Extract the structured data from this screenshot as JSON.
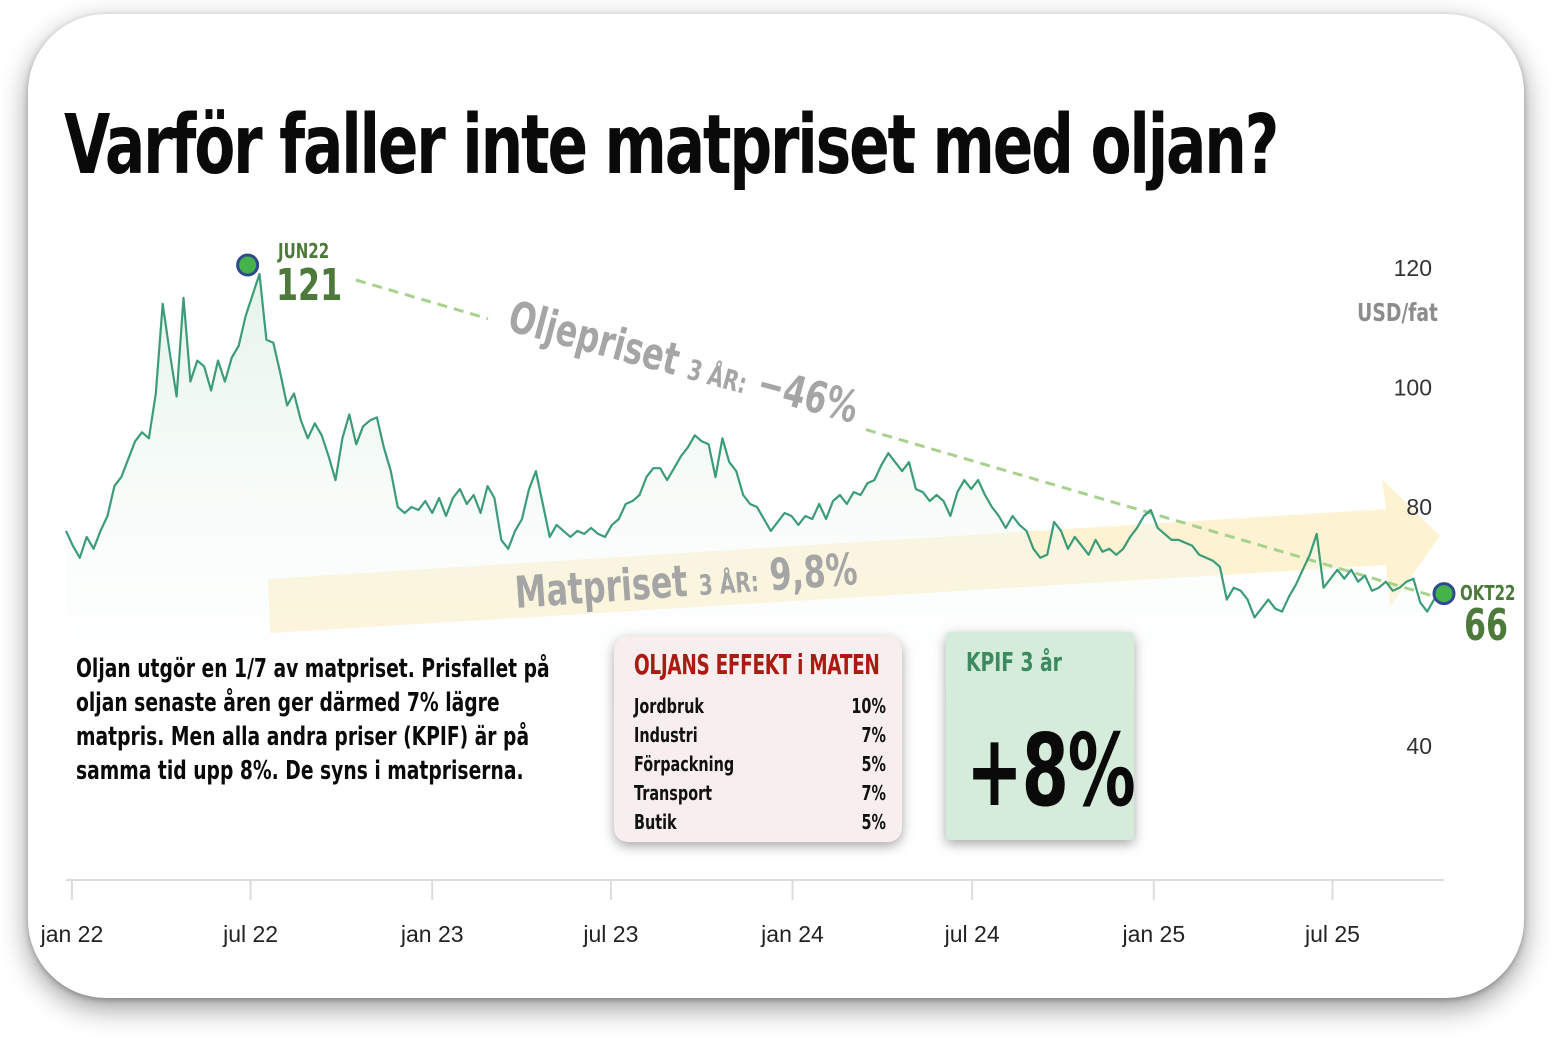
{
  "headline": "Varför faller inte matpriset med oljan?",
  "chart_data": {
    "type": "area",
    "ylabel": "USD/fat",
    "y_ticks": [
      120,
      100,
      80,
      40
    ],
    "ylim": [
      27,
      126
    ],
    "x_ticks": [
      "jan 22",
      "jul 22",
      "jan 23",
      "jul 23",
      "jan 24",
      "jul 24",
      "jan 25",
      "jul 25"
    ],
    "xlim": [
      "2021-12-26",
      "2025-10-22"
    ],
    "grid": false,
    "series": [
      {
        "color": "#3d9c78",
        "points": [
          [
            "2021-12-26",
            76.0
          ],
          [
            "2022-01-02",
            73.5
          ],
          [
            "2022-01-09",
            71.5
          ],
          [
            "2022-01-16",
            75.0
          ],
          [
            "2022-01-23",
            73.0
          ],
          [
            "2022-01-30",
            76.0
          ],
          [
            "2022-02-06",
            78.5
          ],
          [
            "2022-02-13",
            83.5
          ],
          [
            "2022-02-20",
            85.0
          ],
          [
            "2022-02-27",
            88.0
          ],
          [
            "2022-03-06",
            91.0
          ],
          [
            "2022-03-13",
            92.5
          ],
          [
            "2022-03-20",
            91.5
          ],
          [
            "2022-03-27",
            99.0
          ],
          [
            "2022-04-03",
            114.0
          ],
          [
            "2022-04-10",
            106.0
          ],
          [
            "2022-04-17",
            98.5
          ],
          [
            "2022-04-24",
            115.0
          ],
          [
            "2022-05-01",
            101.0
          ],
          [
            "2022-05-08",
            104.5
          ],
          [
            "2022-05-15",
            103.5
          ],
          [
            "2022-05-22",
            99.5
          ],
          [
            "2022-05-29",
            104.5
          ],
          [
            "2022-06-05",
            101.0
          ],
          [
            "2022-06-12",
            105.0
          ],
          [
            "2022-06-19",
            107.0
          ],
          [
            "2022-06-26",
            112.0
          ],
          [
            "2022-07-03",
            115.5
          ],
          [
            "2022-07-10",
            119.0
          ],
          [
            "2022-07-17",
            108.0
          ],
          [
            "2022-07-24",
            107.5
          ],
          [
            "2022-07-31",
            102.5
          ],
          [
            "2022-08-07",
            97.0
          ],
          [
            "2022-08-14",
            99.0
          ],
          [
            "2022-08-21",
            94.5
          ],
          [
            "2022-08-28",
            91.5
          ],
          [
            "2022-09-04",
            94.0
          ],
          [
            "2022-09-11",
            92.0
          ],
          [
            "2022-09-18",
            88.5
          ],
          [
            "2022-09-25",
            84.5
          ],
          [
            "2022-10-02",
            91.5
          ],
          [
            "2022-10-09",
            95.5
          ],
          [
            "2022-10-16",
            90.5
          ],
          [
            "2022-10-23",
            93.5
          ],
          [
            "2022-10-30",
            94.5
          ],
          [
            "2022-11-06",
            95.0
          ],
          [
            "2022-11-13",
            90.0
          ],
          [
            "2022-11-20",
            86.0
          ],
          [
            "2022-11-27",
            80.0
          ],
          [
            "2022-12-04",
            79.0
          ],
          [
            "2022-12-11",
            80.0
          ],
          [
            "2022-12-18",
            79.5
          ],
          [
            "2022-12-25",
            81.0
          ],
          [
            "2023-01-01",
            79.0
          ],
          [
            "2023-01-08",
            81.5
          ],
          [
            "2023-01-15",
            78.5
          ],
          [
            "2023-01-22",
            81.5
          ],
          [
            "2023-01-29",
            83.0
          ],
          [
            "2023-02-05",
            80.5
          ],
          [
            "2023-02-12",
            82.0
          ],
          [
            "2023-02-19",
            79.0
          ],
          [
            "2023-02-26",
            83.5
          ],
          [
            "2023-03-05",
            81.5
          ],
          [
            "2023-03-12",
            74.5
          ],
          [
            "2023-03-19",
            73.0
          ],
          [
            "2023-03-26",
            76.0
          ],
          [
            "2023-04-02",
            78.0
          ],
          [
            "2023-04-09",
            83.0
          ],
          [
            "2023-04-16",
            86.0
          ],
          [
            "2023-04-23",
            80.5
          ],
          [
            "2023-04-30",
            75.0
          ],
          [
            "2023-05-07",
            77.0
          ],
          [
            "2023-05-14",
            76.0
          ],
          [
            "2023-05-21",
            75.0
          ],
          [
            "2023-05-28",
            76.0
          ],
          [
            "2023-06-04",
            75.5
          ],
          [
            "2023-06-11",
            76.5
          ],
          [
            "2023-06-18",
            75.5
          ],
          [
            "2023-06-25",
            75.0
          ],
          [
            "2023-07-02",
            77.0
          ],
          [
            "2023-07-09",
            78.0
          ],
          [
            "2023-07-16",
            80.5
          ],
          [
            "2023-07-23",
            81.0
          ],
          [
            "2023-07-30",
            82.0
          ],
          [
            "2023-08-06",
            85.0
          ],
          [
            "2023-08-13",
            86.5
          ],
          [
            "2023-08-20",
            86.5
          ],
          [
            "2023-08-27",
            84.5
          ],
          [
            "2023-09-03",
            86.5
          ],
          [
            "2023-09-10",
            88.5
          ],
          [
            "2023-09-17",
            90.0
          ],
          [
            "2023-09-24",
            92.0
          ],
          [
            "2023-10-01",
            91.0
          ],
          [
            "2023-10-08",
            90.5
          ],
          [
            "2023-10-15",
            85.0
          ],
          [
            "2023-10-22",
            91.5
          ],
          [
            "2023-10-29",
            87.5
          ],
          [
            "2023-11-05",
            86.0
          ],
          [
            "2023-11-12",
            82.0
          ],
          [
            "2023-11-19",
            80.5
          ],
          [
            "2023-11-26",
            80.0
          ],
          [
            "2023-12-03",
            78.0
          ],
          [
            "2023-12-10",
            76.0
          ],
          [
            "2023-12-17",
            77.5
          ],
          [
            "2023-12-24",
            79.0
          ],
          [
            "2023-12-31",
            78.5
          ],
          [
            "2024-01-07",
            77.0
          ],
          [
            "2024-01-14",
            78.5
          ],
          [
            "2024-01-21",
            78.0
          ],
          [
            "2024-01-28",
            80.5
          ],
          [
            "2024-02-04",
            78.0
          ],
          [
            "2024-02-11",
            81.0
          ],
          [
            "2024-02-18",
            82.0
          ],
          [
            "2024-02-25",
            80.5
          ],
          [
            "2024-03-03",
            82.5
          ],
          [
            "2024-03-10",
            82.0
          ],
          [
            "2024-03-17",
            84.0
          ],
          [
            "2024-03-24",
            84.5
          ],
          [
            "2024-03-31",
            87.0
          ],
          [
            "2024-04-07",
            89.0
          ],
          [
            "2024-04-14",
            87.5
          ],
          [
            "2024-04-21",
            86.0
          ],
          [
            "2024-04-28",
            87.5
          ],
          [
            "2024-05-05",
            83.0
          ],
          [
            "2024-05-12",
            82.5
          ],
          [
            "2024-05-19",
            81.0
          ],
          [
            "2024-05-26",
            82.0
          ],
          [
            "2024-06-02",
            81.0
          ],
          [
            "2024-06-09",
            78.5
          ],
          [
            "2024-06-16",
            82.5
          ],
          [
            "2024-06-23",
            84.5
          ],
          [
            "2024-06-30",
            83.0
          ],
          [
            "2024-07-07",
            84.5
          ],
          [
            "2024-07-14",
            82.0
          ],
          [
            "2024-07-21",
            80.0
          ],
          [
            "2024-07-28",
            78.5
          ],
          [
            "2024-08-04",
            76.5
          ],
          [
            "2024-08-11",
            78.5
          ],
          [
            "2024-08-18",
            77.0
          ],
          [
            "2024-08-25",
            76.0
          ],
          [
            "2024-09-01",
            73.0
          ],
          [
            "2024-09-08",
            71.5
          ],
          [
            "2024-09-15",
            72.0
          ],
          [
            "2024-09-22",
            77.5
          ],
          [
            "2024-09-29",
            76.0
          ],
          [
            "2024-10-06",
            73.0
          ],
          [
            "2024-10-13",
            75.0
          ],
          [
            "2024-10-20",
            73.5
          ],
          [
            "2024-10-27",
            72.0
          ],
          [
            "2024-11-03",
            74.5
          ],
          [
            "2024-11-10",
            72.5
          ],
          [
            "2024-11-17",
            73.0
          ],
          [
            "2024-11-24",
            72.0
          ],
          [
            "2024-12-01",
            73.0
          ],
          [
            "2024-12-08",
            75.0
          ],
          [
            "2024-12-15",
            76.5
          ],
          [
            "2024-12-22",
            78.5
          ],
          [
            "2024-12-29",
            79.5
          ],
          [
            "2025-01-05",
            76.5
          ],
          [
            "2025-01-12",
            75.5
          ],
          [
            "2025-01-19",
            74.5
          ],
          [
            "2025-01-26",
            74.5
          ],
          [
            "2025-02-02",
            74.0
          ],
          [
            "2025-02-09",
            73.5
          ],
          [
            "2025-02-16",
            72.0
          ],
          [
            "2025-02-23",
            71.5
          ],
          [
            "2025-03-02",
            71.0
          ],
          [
            "2025-03-09",
            70.0
          ],
          [
            "2025-03-16",
            64.5
          ],
          [
            "2025-03-23",
            66.5
          ],
          [
            "2025-03-30",
            66.0
          ],
          [
            "2025-04-06",
            64.5
          ],
          [
            "2025-04-13",
            61.5
          ],
          [
            "2025-04-20",
            63.0
          ],
          [
            "2025-04-27",
            64.5
          ],
          [
            "2025-05-04",
            63.0
          ],
          [
            "2025-05-11",
            62.5
          ],
          [
            "2025-05-18",
            65.0
          ],
          [
            "2025-05-25",
            67.0
          ],
          [
            "2025-06-01",
            69.5
          ],
          [
            "2025-06-08",
            72.0
          ],
          [
            "2025-06-15",
            75.5
          ],
          [
            "2025-06-22",
            66.5
          ],
          [
            "2025-06-29",
            68.0
          ],
          [
            "2025-07-06",
            69.5
          ],
          [
            "2025-07-13",
            68.0
          ],
          [
            "2025-07-20",
            69.5
          ],
          [
            "2025-07-27",
            67.5
          ],
          [
            "2025-08-03",
            68.5
          ],
          [
            "2025-08-10",
            66.0
          ],
          [
            "2025-08-17",
            66.5
          ],
          [
            "2025-08-24",
            67.5
          ],
          [
            "2025-08-31",
            66.0
          ],
          [
            "2025-09-07",
            66.5
          ],
          [
            "2025-09-14",
            67.5
          ],
          [
            "2025-09-21",
            68.0
          ],
          [
            "2025-09-28",
            64.0
          ],
          [
            "2025-10-05",
            62.5
          ],
          [
            "2025-10-12",
            64.5
          ],
          [
            "2025-10-19",
            65.0
          ]
        ]
      }
    ],
    "peak": {
      "label": "JUN22",
      "value": "121",
      "date": "2022-06-28",
      "y": 120.5
    },
    "last": {
      "label": "OKT22",
      "value": "66",
      "date": "2025-10-22",
      "y": 65.5
    },
    "trend_label": {
      "text": "Oljepriset",
      "period": "3 ÅR:",
      "value": "−46%"
    },
    "arrow_label": {
      "text": "Matpriset",
      "period": "3 ÅR:",
      "value": "9,8%"
    }
  },
  "note": "Oljan utgör en 1/7 av matpriset. Prisfallet på oljan senaste åren ger därmed 7% lägre matpris. Men alla andra priser (KPIF) är på samma tid upp 8%. De syns i matpriserna.",
  "effect_box": {
    "title": "OLJANS EFFEKT i MATEN",
    "rows": [
      {
        "label": "Jordbruk",
        "value": "10%"
      },
      {
        "label": "Industri",
        "value": "7%"
      },
      {
        "label": "Förpackning",
        "value": "5%"
      },
      {
        "label": "Transport",
        "value": "7%"
      },
      {
        "label": "Butik",
        "value": "5%"
      }
    ]
  },
  "kpif_box": {
    "title": "KPIF 3 år",
    "value": "+8%"
  },
  "colors": {
    "line": "#3d9c78",
    "area": "#eaf6f0",
    "marker_fill": "#46b34a",
    "marker_stroke": "#2f4a8a",
    "peak_text": "#4d7a3a",
    "trend_line": "#a9d18e",
    "trend_text": "#a5a5a5",
    "arrow": "#fdf2d2",
    "arrow_text": "#a5a5a5",
    "axis": "#dcdcdc",
    "tick_text": "#222222",
    "ytick_text": "#333333",
    "effect_title": "#a81c14",
    "effect_bg": "#f8eeee",
    "kpif_bg": "#d4ecd9",
    "kpif_title": "#3c8a60"
  }
}
